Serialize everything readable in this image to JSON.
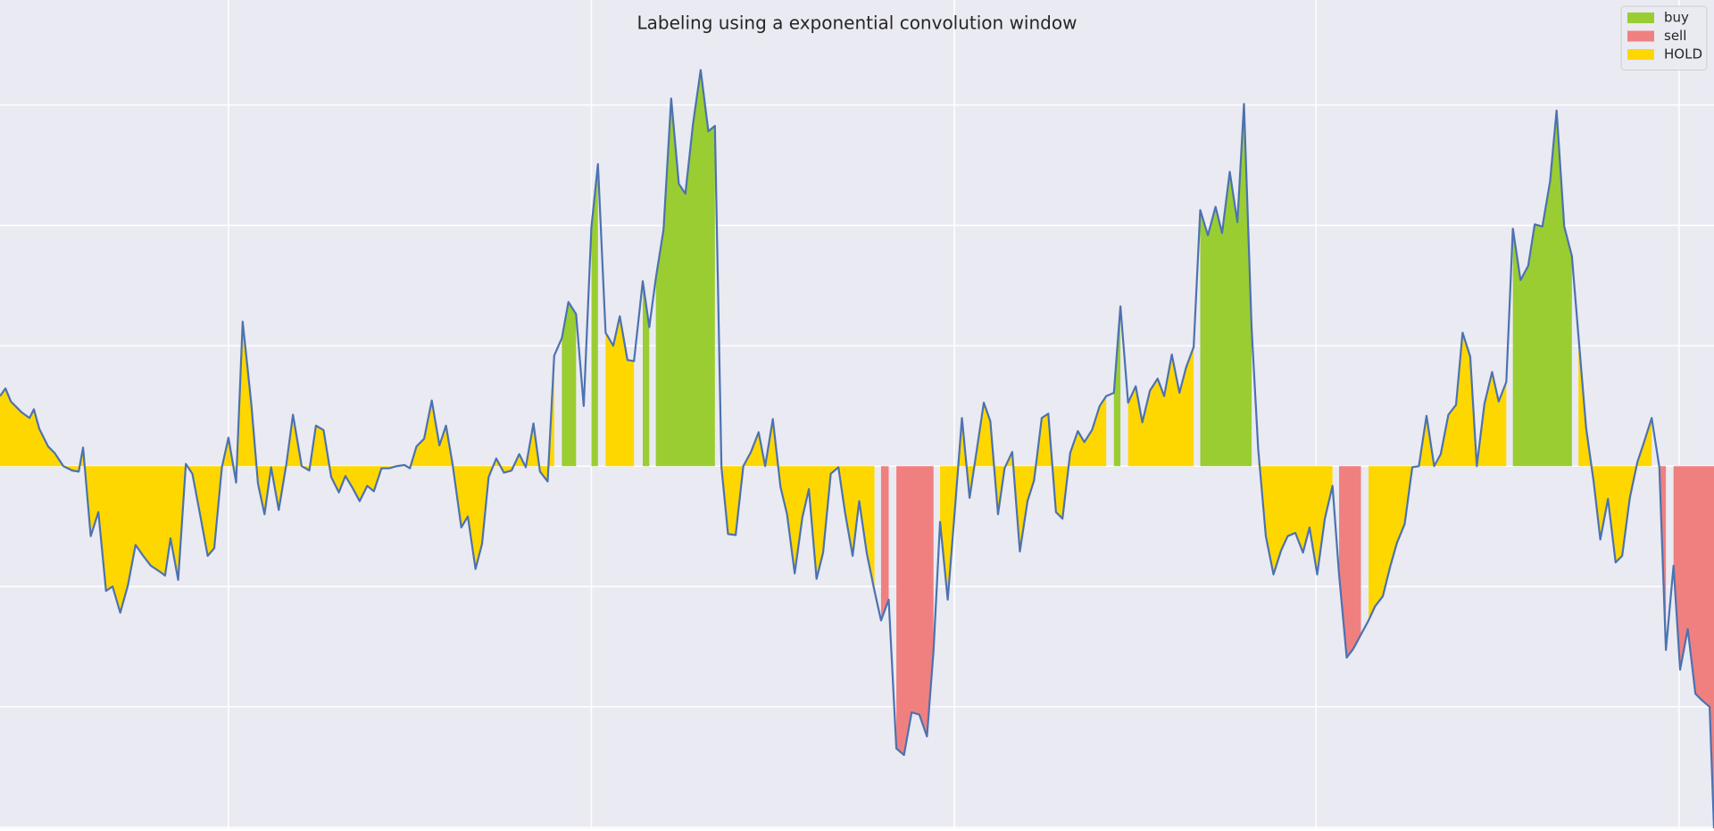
{
  "chart_data": {
    "type": "labeled-line",
    "title": "Labeling using a exponential convolution window",
    "color": "#4c72b0",
    "background": "#eaeaf2",
    "grid": true,
    "legend": "upper right",
    "xlim": [
      0,
      1568
    ],
    "xticks": [
      209,
      541,
      873,
      1204,
      1536
    ],
    "ylim": [
      -331,
      426
    ],
    "yticks": [
      -330,
      -220,
      -110,
      0,
      110,
      220,
      330
    ],
    "x": [
      0,
      5,
      10,
      20,
      27,
      31,
      36,
      44,
      50,
      58,
      66,
      72,
      76,
      83,
      90,
      97,
      103,
      110,
      117,
      124,
      131,
      138,
      147,
      151,
      156,
      163,
      170,
      176,
      183,
      190,
      196,
      203,
      209,
      216,
      222,
      230,
      236,
      242,
      248,
      255,
      262,
      268,
      276,
      283,
      289,
      296,
      303,
      310,
      316,
      322,
      329,
      336,
      342,
      349,
      356,
      363,
      370,
      375,
      381,
      388,
      395,
      402,
      408,
      414,
      422,
      428,
      435,
      441,
      447,
      454,
      461,
      468,
      475,
      481,
      488,
      494,
      501,
      507,
      514,
      520,
      527,
      534,
      541,
      547,
      554,
      561,
      567,
      574,
      580,
      588,
      594,
      600,
      607,
      614,
      621,
      627,
      634,
      641,
      648,
      654,
      660,
      666,
      673,
      680,
      687,
      694,
      700,
      707,
      714,
      720,
      727,
      734,
      740,
      747,
      753,
      760,
      767,
      773,
      780,
      786,
      793,
      800,
      806,
      813,
      820,
      827,
      834,
      841,
      848,
      854,
      860,
      867,
      874,
      880,
      887,
      893,
      900,
      906,
      913,
      919,
      926,
      933,
      940,
      946,
      953,
      959,
      966,
      972,
      979,
      986,
      992,
      999,
      1006,
      1012,
      1019,
      1025,
      1032,
      1039,
      1045,
      1052,
      1059,
      1065,
      1072,
      1079,
      1085,
      1092,
      1098,
      1105,
      1112,
      1118,
      1125,
      1132,
      1138,
      1145,
      1151,
      1158,
      1165,
      1172,
      1178,
      1185,
      1192,
      1198,
      1205,
      1212,
      1219,
      1225,
      1232,
      1238,
      1245,
      1252,
      1258,
      1265,
      1272,
      1278,
      1285,
      1292,
      1298,
      1305,
      1312,
      1318,
      1325,
      1332,
      1338,
      1345,
      1351,
      1358,
      1365,
      1371,
      1378,
      1384,
      1391,
      1398,
      1404,
      1411,
      1418,
      1424,
      1431,
      1438,
      1444,
      1451,
      1458,
      1464,
      1471,
      1478,
      1484,
      1491,
      1498,
      1504,
      1511,
      1518,
      1524,
      1531,
      1537,
      1544,
      1551,
      1557,
      1564,
      1568
    ],
    "values": [
      64,
      71,
      59,
      49,
      44,
      52,
      34,
      18,
      12,
      0,
      -4,
      -5,
      17,
      -64,
      -42,
      -114,
      -110,
      -134,
      -109,
      -72,
      -82,
      -91,
      -97,
      -100,
      -66,
      -104,
      2,
      -7,
      -44,
      -82,
      -75,
      -1,
      26,
      -15,
      132,
      56,
      -16,
      -44,
      -1,
      -40,
      2,
      47,
      0,
      -4,
      37,
      33,
      -10,
      -24,
      -9,
      -19,
      -32,
      -18,
      -23,
      -2,
      -2,
      0,
      1,
      -2,
      18,
      25,
      60,
      19,
      37,
      2,
      -56,
      -46,
      -94,
      -71,
      -10,
      7,
      -6,
      -4,
      11,
      -1,
      39,
      -5,
      -14,
      101,
      117,
      150,
      139,
      55,
      218,
      276,
      122,
      110,
      137,
      97,
      96,
      169,
      127,
      172,
      216,
      336,
      258,
      249,
      313,
      362,
      306,
      311,
      -1,
      -62,
      -63,
      0,
      13,
      31,
      0,
      43,
      -19,
      -44,
      -98,
      -47,
      -21,
      -103,
      -79,
      -7,
      -1,
      -42,
      -82,
      -32,
      -80,
      -114,
      -141,
      -122,
      -258,
      -264,
      -225,
      -227,
      -247,
      -169,
      -51,
      -122,
      -34,
      44,
      -29,
      11,
      58,
      41,
      -44,
      -2,
      13,
      -78,
      -32,
      -13,
      44,
      48,
      -42,
      -48,
      12,
      32,
      22,
      33,
      55,
      64,
      67,
      146,
      58,
      73,
      40,
      69,
      80,
      64,
      102,
      67,
      90,
      109,
      234,
      211,
      237,
      213,
      269,
      223,
      331,
      126,
      16,
      -64,
      -99,
      -77,
      -64,
      -61,
      -79,
      -56,
      -99,
      -48,
      -18,
      -99,
      -175,
      -167,
      -154,
      -141,
      -128,
      -119,
      -91,
      -70,
      -53,
      -1,
      0,
      46,
      0,
      11,
      47,
      56,
      122,
      100,
      0,
      57,
      86,
      59,
      77,
      217,
      170,
      183,
      221,
      219,
      260,
      325,
      219,
      192,
      119,
      35,
      -15,
      -67,
      -30,
      -88,
      -82,
      -29,
      4,
      22,
      44,
      -1,
      -168,
      -91,
      -186,
      -149,
      -208,
      -214,
      -220,
      -331
    ],
    "series": [
      {
        "name": "buy",
        "color": "#9acd32",
        "ranges": [
          [
            514,
            527
          ],
          [
            541,
            547
          ],
          [
            588,
            594
          ],
          [
            600,
            654
          ],
          [
            1019,
            1025
          ],
          [
            1098,
            1145
          ],
          [
            1384,
            1438
          ]
        ]
      },
      {
        "name": "sell",
        "color": "#f08080",
        "ranges": [
          [
            806,
            813
          ],
          [
            820,
            854
          ],
          [
            1225,
            1245
          ],
          [
            1518,
            1524
          ],
          [
            1531,
            1568
          ]
        ]
      },
      {
        "name": "HOLD",
        "color": "#ffd700",
        "ranges": [
          [
            0,
            507
          ],
          [
            554,
            580
          ],
          [
            660,
            800
          ],
          [
            860,
            1012
          ],
          [
            1032,
            1092
          ],
          [
            1151,
            1219
          ],
          [
            1252,
            1378
          ],
          [
            1444,
            1511
          ]
        ]
      }
    ]
  }
}
